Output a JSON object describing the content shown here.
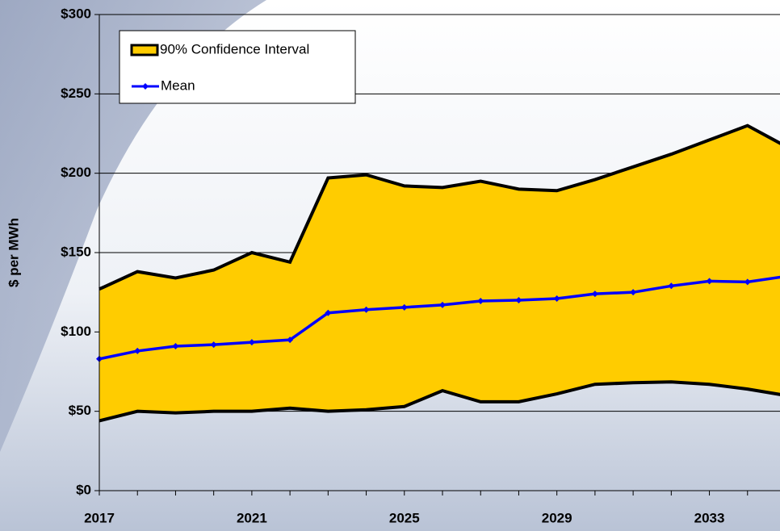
{
  "chart_data": {
    "type": "line",
    "y_label": "$ per MWh",
    "x": [
      2017,
      2018,
      2019,
      2020,
      2021,
      2022,
      2023,
      2024,
      2025,
      2026,
      2027,
      2028,
      2029,
      2030,
      2031,
      2032,
      2033,
      2034,
      2035
    ],
    "xlim": [
      2017,
      2035
    ],
    "xticks": [
      2017,
      2021,
      2025,
      2029,
      2033
    ],
    "ylim": [
      0,
      300
    ],
    "yticks": [
      {
        "value": 0,
        "label": "$0"
      },
      {
        "value": 50,
        "label": "$50"
      },
      {
        "value": 100,
        "label": "$100"
      },
      {
        "value": 150,
        "label": "$150"
      },
      {
        "value": 200,
        "label": "$200"
      },
      {
        "value": 250,
        "label": "$250"
      },
      {
        "value": 300,
        "label": "$300"
      }
    ],
    "grid": true,
    "legend": "upper left",
    "series": [
      {
        "name": "90% Confidence Interval",
        "color": "#ffcc00",
        "lower": [
          44,
          50,
          49,
          50,
          50,
          52,
          50,
          51,
          53,
          63,
          56,
          56,
          61,
          67,
          68,
          68.5,
          67,
          64,
          60
        ],
        "upper": [
          127,
          138,
          134,
          139,
          150,
          144,
          197,
          199,
          192,
          191,
          195,
          190,
          189,
          196,
          204,
          212,
          221,
          230,
          217
        ]
      },
      {
        "name": "Mean",
        "color": "#0000ff",
        "values": [
          83,
          88,
          91,
          92,
          93.5,
          95,
          112,
          114,
          115.5,
          117,
          119.5,
          120,
          121,
          124,
          125,
          129,
          132,
          131.5,
          135
        ]
      }
    ]
  }
}
